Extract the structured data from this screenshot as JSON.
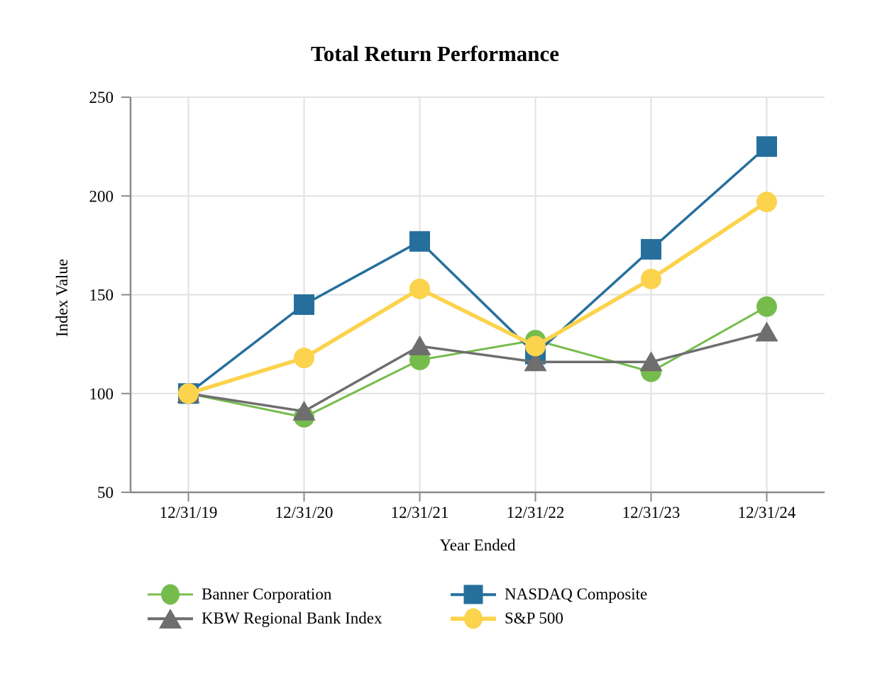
{
  "chart_data": {
    "type": "line",
    "title": "Total Return Performance",
    "xlabel": "Year Ended",
    "ylabel": "Index Value",
    "categories": [
      "12/31/19",
      "12/31/20",
      "12/31/21",
      "12/31/22",
      "12/31/23",
      "12/31/24"
    ],
    "yticks": [
      50,
      100,
      150,
      200,
      250
    ],
    "ylim": [
      50,
      250
    ],
    "grid": true,
    "legend_position": "bottom",
    "series": [
      {
        "name": "Banner Corporation",
        "marker": "circle",
        "color": "#76BC4D",
        "line_width": 3,
        "values": [
          100,
          88,
          117,
          127,
          111,
          144
        ]
      },
      {
        "name": "NASDAQ Composite",
        "marker": "square",
        "color": "#266F9C",
        "line_width": 3.5,
        "values": [
          100,
          145,
          177,
          120,
          173,
          225
        ]
      },
      {
        "name": "KBW Regional Bank Index",
        "marker": "triangle",
        "color": "#6E6E6E",
        "line_width": 3.5,
        "values": [
          100,
          91,
          124,
          116,
          116,
          131
        ]
      },
      {
        "name": "S&P 500",
        "marker": "circle",
        "color": "#FBD34C",
        "line_width": 5.5,
        "values": [
          100,
          118,
          153,
          124,
          158,
          197
        ]
      }
    ],
    "colors": {
      "gridline": "#E2E2E2",
      "axis": "#8A8A8A",
      "text": "#000000"
    }
  }
}
